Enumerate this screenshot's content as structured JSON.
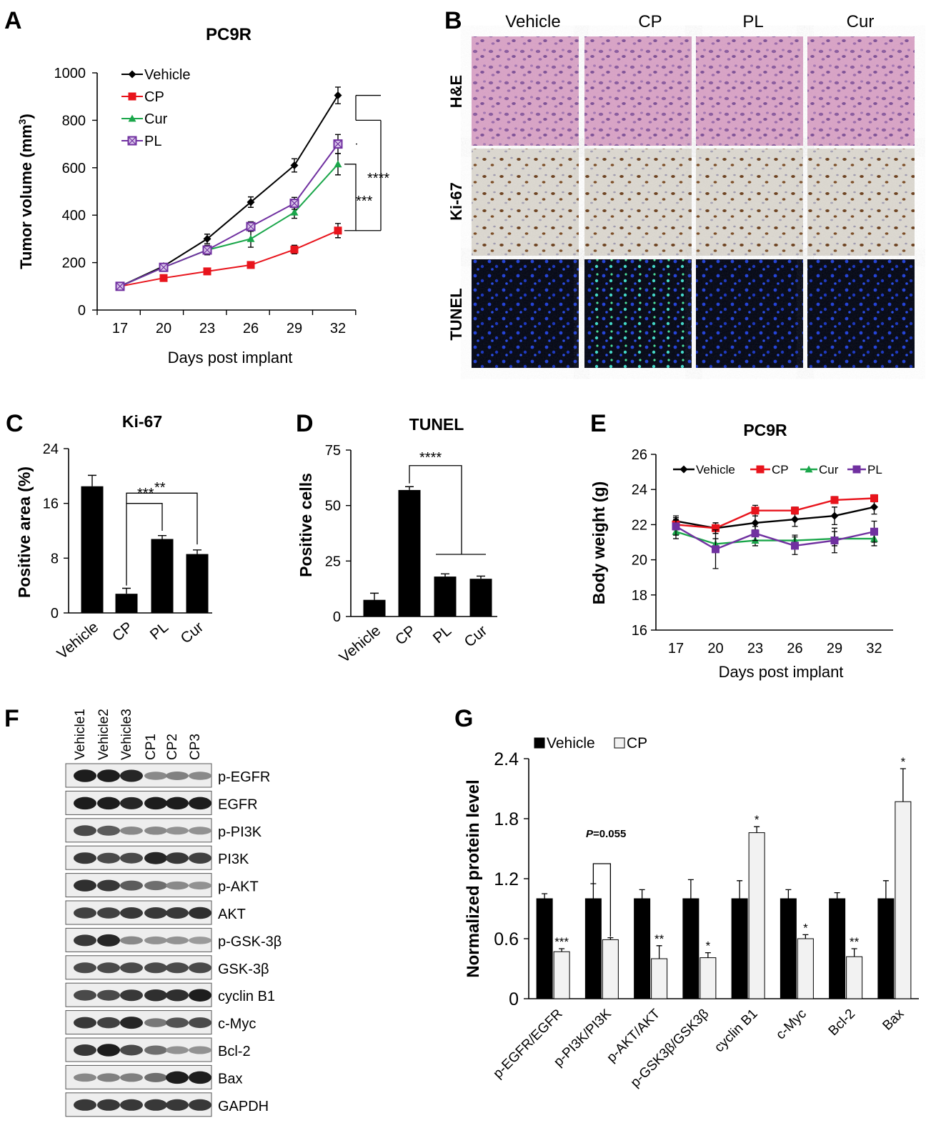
{
  "panels": {
    "A": {
      "letter": "A",
      "chart_data": {
        "type": "line",
        "title": "PC9R",
        "xlabel": "Days post implant",
        "ylabel": "Tumor volume (mm",
        "ylabel_sup": "3",
        "ylabel_tail": ")",
        "x": [
          17,
          20,
          23,
          26,
          29,
          32
        ],
        "ylim": [
          0,
          1000
        ],
        "yticks": [
          0,
          200,
          400,
          600,
          800,
          1000
        ],
        "series": [
          {
            "name": "Vehicle",
            "color": "#000000",
            "marker": "diamond",
            "values": [
              100,
              185,
              300,
              455,
              610,
              905
            ],
            "err": [
              0,
              8,
              20,
              22,
              28,
              35
            ]
          },
          {
            "name": "CP",
            "color": "#e8141c",
            "marker": "square",
            "values": [
              100,
              135,
              163,
              190,
              255,
              335
            ],
            "err": [
              0,
              6,
              8,
              10,
              18,
              30
            ]
          },
          {
            "name": "Cur",
            "color": "#1aa64a",
            "marker": "triangle",
            "values": [
              100,
              180,
              253,
              300,
              412,
              615
            ],
            "err": [
              0,
              8,
              20,
              35,
              25,
              45
            ]
          },
          {
            "name": "PL",
            "color": "#7030a0",
            "marker": "square-open",
            "values": [
              100,
              180,
              253,
              352,
              450,
              700
            ],
            "err": [
              0,
              8,
              15,
              20,
              25,
              40
            ]
          }
        ],
        "annotations": [
          "****",
          "***"
        ]
      }
    },
    "B": {
      "letter": "B",
      "columns": [
        "Vehicle",
        "CP",
        "PL",
        "Cur"
      ],
      "rows": [
        "H&E",
        "Ki-67",
        "TUNEL"
      ]
    },
    "C": {
      "letter": "C",
      "chart_data": {
        "type": "bar",
        "title": "Ki-67",
        "ylabel": "Positive area (%)",
        "categories": [
          "Vehicle",
          "CP",
          "PL",
          "Cur"
        ],
        "values": [
          18.5,
          2.8,
          10.8,
          8.6
        ],
        "err": [
          1.6,
          0.8,
          0.5,
          0.6
        ],
        "ylim": [
          0,
          24
        ],
        "yticks": [
          0,
          8,
          16,
          24
        ],
        "annotations": [
          "***",
          "**"
        ]
      }
    },
    "D": {
      "letter": "D",
      "chart_data": {
        "type": "bar",
        "title": "TUNEL",
        "ylabel": "Positive cells",
        "categories": [
          "Vehicle",
          "CP",
          "PL",
          "Cur"
        ],
        "values": [
          7.5,
          57,
          18,
          17
        ],
        "err": [
          3,
          1.5,
          1.2,
          1.2
        ],
        "ylim": [
          0,
          75
        ],
        "yticks": [
          0,
          25,
          50,
          75
        ],
        "annotations": [
          "****"
        ]
      }
    },
    "E": {
      "letter": "E",
      "chart_data": {
        "type": "line",
        "title": "PC9R",
        "xlabel": "Days post implant",
        "ylabel": "Body weight (g)",
        "x": [
          17,
          20,
          23,
          26,
          29,
          32
        ],
        "ylim": [
          16,
          26
        ],
        "yticks": [
          16,
          18,
          20,
          22,
          24,
          26
        ],
        "series": [
          {
            "name": "Vehicle",
            "color": "#000000",
            "marker": "diamond",
            "values": [
              22.2,
              21.8,
              22.1,
              22.3,
              22.5,
              23.0
            ],
            "err": [
              0.3,
              0.3,
              0.4,
              0.4,
              0.5,
              0.4
            ]
          },
          {
            "name": "CP",
            "color": "#e8141c",
            "marker": "square",
            "values": [
              22.0,
              21.8,
              22.8,
              22.8,
              23.4,
              23.5
            ],
            "err": [
              0.3,
              0.3,
              0.3,
              0.2,
              0.2,
              0.2
            ]
          },
          {
            "name": "Cur",
            "color": "#1aa64a",
            "marker": "triangle",
            "values": [
              21.6,
              20.9,
              21.1,
              21.1,
              21.2,
              21.2
            ],
            "err": [
              0.4,
              0.3,
              0.3,
              0.3,
              0.4,
              0.4
            ]
          },
          {
            "name": "PL",
            "color": "#7030a0",
            "marker": "square",
            "values": [
              21.9,
              20.6,
              21.5,
              20.8,
              21.1,
              21.6
            ],
            "err": [
              0.5,
              1.1,
              0.4,
              0.5,
              0.7,
              0.6
            ]
          }
        ]
      }
    },
    "F": {
      "letter": "F",
      "lanes": [
        "Vehicle1",
        "Vehicle2",
        "Vehicle3",
        "CP1",
        "CP2",
        "CP3"
      ],
      "bands": [
        "p-EGFR",
        "EGFR",
        "p-PI3K",
        "PI3K",
        "p-AKT",
        "AKT",
        "p-GSK-3β",
        "GSK-3β",
        "cyclin B1",
        "c-Myc",
        "Bcl-2",
        "Bax",
        "GAPDH"
      ]
    },
    "G": {
      "letter": "G",
      "chart_data": {
        "type": "bar",
        "ylabel": "Normalized protein level",
        "categories": [
          "p-EGFR/EGFR",
          "p-PI3K/PI3K",
          "p-AKT/AKT",
          "p-GSK3β/GSK3β",
          "cyclin B1",
          "c-Myc",
          "Bcl-2",
          "Bax"
        ],
        "series": [
          {
            "name": "Vehicle",
            "color": "#000000",
            "values": [
              1.0,
              1.0,
              1.0,
              1.0,
              1.0,
              1.0,
              1.0,
              1.0
            ],
            "err": [
              0.05,
              0.15,
              0.09,
              0.19,
              0.18,
              0.09,
              0.06,
              0.18
            ]
          },
          {
            "name": "CP",
            "color": "#f2f2f2",
            "values": [
              0.47,
              0.59,
              0.4,
              0.41,
              1.66,
              0.6,
              0.42,
              1.97
            ],
            "err": [
              0.03,
              0.02,
              0.13,
              0.05,
              0.06,
              0.04,
              0.08,
              0.33
            ]
          }
        ],
        "ylim": [
          0,
          2.4
        ],
        "yticks": [
          "0",
          "0.6",
          "1.2",
          "1.8",
          "2.4"
        ],
        "sig": [
          "***",
          "",
          "**",
          "*",
          "*",
          "*",
          "**",
          "*"
        ],
        "p_annotation_italic": "P",
        "p_annotation_rest": "=0.055"
      }
    }
  }
}
